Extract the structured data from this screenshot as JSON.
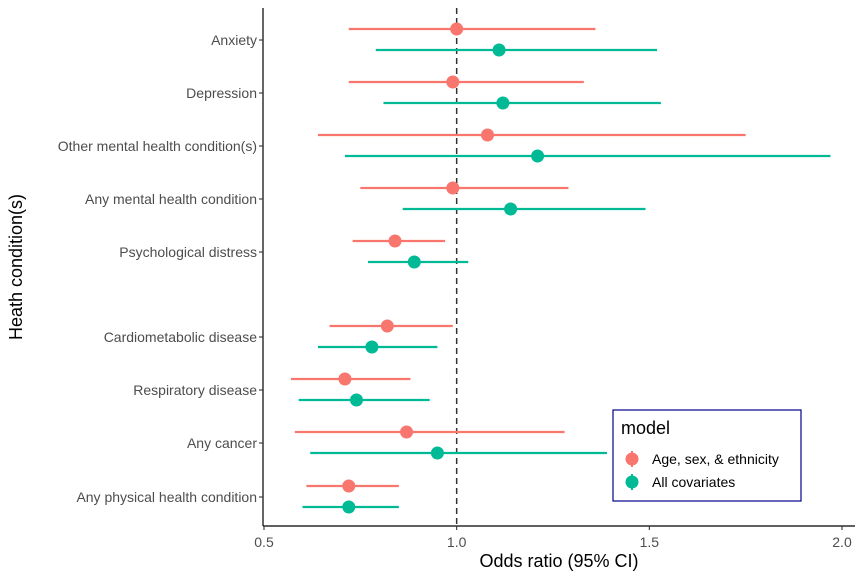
{
  "chart_data": {
    "type": "forest",
    "xlabel": "Odds ratio (95% CI)",
    "ylabel": "Heath condition(s)",
    "xlim": [
      0.5,
      2.03
    ],
    "xticks": [
      "0.5",
      "1.0",
      "1.5",
      "2.0"
    ],
    "xtick_values": [
      0.5,
      1.0,
      1.5,
      2.0
    ],
    "reference_line": 1.0,
    "grid": false,
    "legend": {
      "title": "model",
      "position": "bottom-right",
      "entries": [
        "Age, sex, & ethnicity",
        "All covariates"
      ]
    },
    "categories": [
      "Anxiety",
      "Depression",
      "Other mental health condition(s)",
      "Any mental health condition",
      "Psychological distress",
      "Cardiometabolic disease",
      "Respiratory disease",
      "Any cancer",
      "Any physical health condition"
    ],
    "series": [
      {
        "name": "Age, sex, & ethnicity",
        "color": "#F8766D",
        "estimate": [
          1.0,
          0.99,
          1.08,
          0.99,
          0.84,
          0.82,
          0.71,
          0.87,
          0.72
        ],
        "lower": [
          0.72,
          0.72,
          0.64,
          0.75,
          0.73,
          0.67,
          0.57,
          0.58,
          0.61
        ],
        "upper": [
          1.36,
          1.33,
          1.75,
          1.29,
          0.97,
          0.99,
          0.88,
          1.28,
          0.85
        ]
      },
      {
        "name": "All covariates",
        "color": "#00BA96",
        "estimate": [
          1.11,
          1.12,
          1.21,
          1.14,
          0.89,
          0.78,
          0.74,
          0.95,
          0.72
        ],
        "lower": [
          0.79,
          0.81,
          0.71,
          0.86,
          0.77,
          0.64,
          0.59,
          0.62,
          0.6
        ],
        "upper": [
          1.52,
          1.53,
          1.97,
          1.49,
          1.03,
          0.95,
          0.93,
          1.39,
          0.85
        ]
      }
    ]
  }
}
